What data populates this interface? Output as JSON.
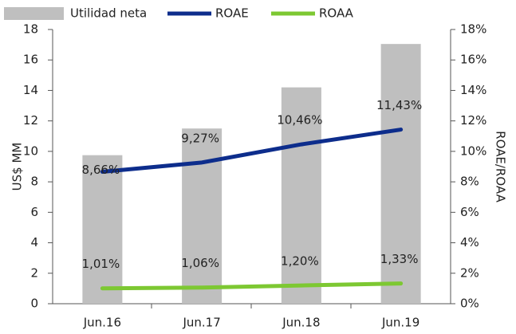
{
  "chart_data": {
    "type": "bar",
    "categories": [
      "Jun.16",
      "Jun.17",
      "Jun.18",
      "Jun.19"
    ],
    "series": [
      {
        "name": "Utilidad neta",
        "type": "bar",
        "color": "#bfbfbf",
        "axis": "y",
        "values": [
          9.75,
          11.5,
          14.2,
          17.05
        ]
      },
      {
        "name": "ROAE",
        "type": "line",
        "color": "#0d2d8c",
        "axis": "y2",
        "values": [
          8.66,
          9.27,
          10.46,
          11.43
        ],
        "value_labels": [
          "8,66%",
          "9,27%",
          "10,46%",
          "11,43%"
        ]
      },
      {
        "name": "ROAA",
        "type": "line",
        "color": "#7dc832",
        "axis": "y2",
        "values": [
          1.01,
          1.06,
          1.2,
          1.33
        ],
        "value_labels": [
          "1,01%",
          "1,06%",
          "1,20%",
          "1,33%"
        ]
      }
    ],
    "ylabel": "US$ MM",
    "y2label": "ROAE/ROAA",
    "ylim": [
      0,
      18
    ],
    "yticks": [
      0,
      2,
      4,
      6,
      8,
      10,
      12,
      14,
      16,
      18
    ],
    "y2lim": [
      0,
      18
    ],
    "y2ticks": [
      {
        "value": 0,
        "label": "0%"
      },
      {
        "value": 2,
        "label": "2%"
      },
      {
        "value": 4,
        "label": "4%"
      },
      {
        "value": 6,
        "label": "6%"
      },
      {
        "value": 8,
        "label": "8%"
      },
      {
        "value": 10,
        "label": "10%"
      },
      {
        "value": 12,
        "label": "12%"
      },
      {
        "value": 14,
        "label": "14%"
      },
      {
        "value": 16,
        "label": "16%"
      },
      {
        "value": 18,
        "label": "18%"
      }
    ],
    "legend": "top"
  }
}
